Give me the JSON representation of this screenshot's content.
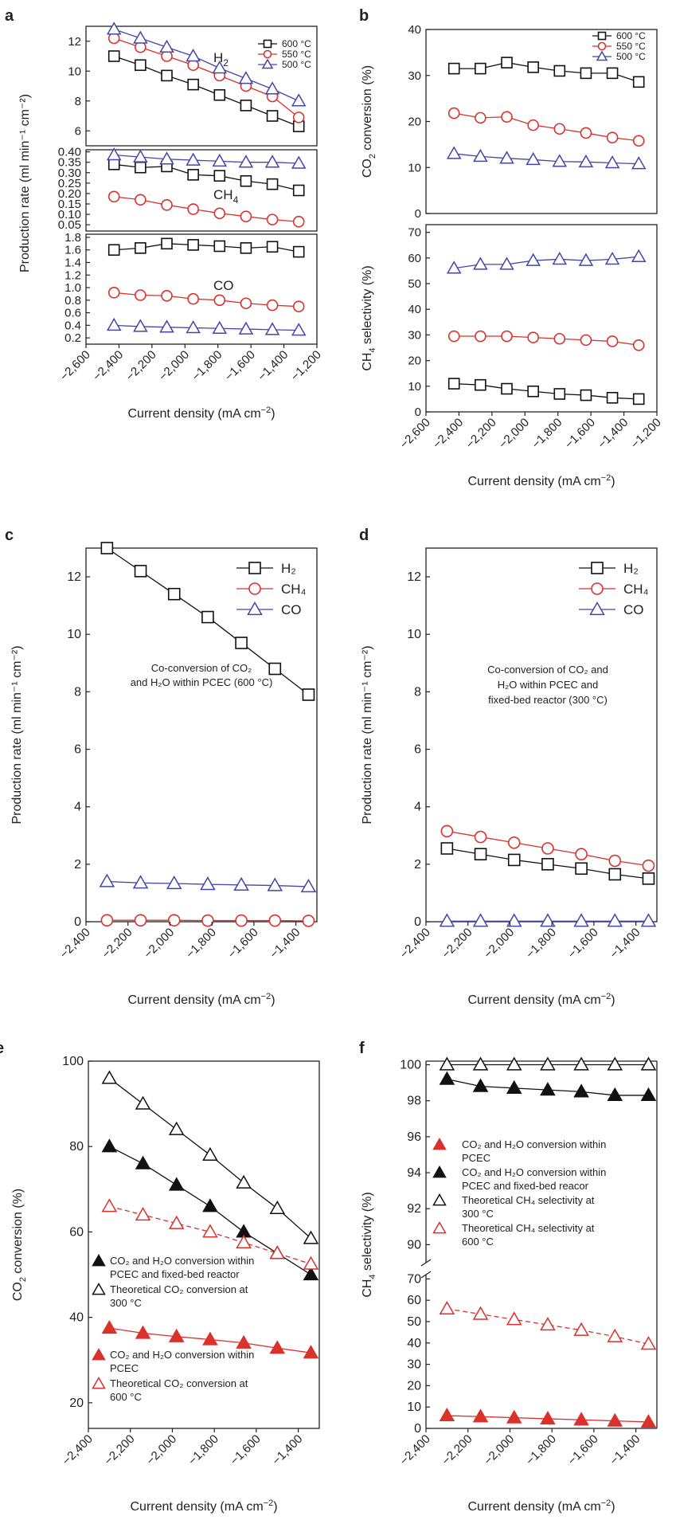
{
  "colors": {
    "black": "#111111",
    "red": "#d9312b",
    "blue": "#4446a8",
    "frame": "#222222"
  },
  "shared": {
    "xlabel_text": "Current density (mA cm",
    "xlabel_sup": "−2",
    "xlabel_close": ")"
  },
  "chart_data": [
    {
      "id": "a",
      "panel_label": "a",
      "type": "line",
      "xlim": [
        -2600,
        -1200
      ],
      "xticks": [
        -2600,
        -2400,
        -2200,
        -2000,
        -1800,
        -1600,
        -1400,
        -1200
      ],
      "xtick_labels": [
        "−2,600",
        "−2,400",
        "−2,200",
        "−2,000",
        "−1,800",
        "−1,600",
        "−1,400",
        "−1,200"
      ],
      "x": [
        -2430,
        -2270,
        -2110,
        -1950,
        -1790,
        -1630,
        -1470,
        -1310
      ],
      "ylabel": "Production rate (ml min⁻¹ cm⁻²)",
      "legend": [
        "600 °C",
        "550 °C",
        "500 °C"
      ],
      "subplots": [
        {
          "id": "H2",
          "ylim": [
            5,
            13
          ],
          "yticks": [
            6,
            8,
            10,
            12
          ],
          "ytick_labels": [
            "6",
            "8",
            "10",
            "12"
          ],
          "label_main": "H",
          "label_sub": "2",
          "series": [
            {
              "name": "600 °C",
              "marker": "square",
              "color": "#111111",
              "values": [
                11.0,
                10.4,
                9.7,
                9.1,
                8.4,
                7.7,
                7.0,
                6.3
              ]
            },
            {
              "name": "550 °C",
              "marker": "circle",
              "color": "#d9312b",
              "values": [
                12.2,
                11.6,
                11.0,
                10.4,
                9.7,
                9.0,
                8.3,
                6.9
              ]
            },
            {
              "name": "500 °C",
              "marker": "triangle",
              "color": "#4446a8",
              "values": [
                12.8,
                12.2,
                11.6,
                11.0,
                10.2,
                9.5,
                8.8,
                8.0
              ]
            }
          ]
        },
        {
          "id": "CH4",
          "ylim": [
            0.02,
            0.41
          ],
          "yticks": [
            0.05,
            0.1,
            0.15,
            0.2,
            0.25,
            0.3,
            0.35,
            0.4
          ],
          "ytick_labels": [
            "0.05",
            "0.10",
            "0.15",
            "0.20",
            "0.25",
            "0.30",
            "0.35",
            "0.40"
          ],
          "label_main": "CH",
          "label_sub": "4",
          "series": [
            {
              "name": "600 °C",
              "marker": "square",
              "color": "#111111",
              "values": [
                0.34,
                0.325,
                0.33,
                0.29,
                0.285,
                0.26,
                0.245,
                0.215
              ]
            },
            {
              "name": "550 °C",
              "marker": "circle",
              "color": "#d9312b",
              "values": [
                0.185,
                0.17,
                0.145,
                0.125,
                0.105,
                0.09,
                0.075,
                0.065
              ]
            },
            {
              "name": "500 °C",
              "marker": "triangle",
              "color": "#4446a8",
              "values": [
                0.385,
                0.375,
                0.365,
                0.36,
                0.355,
                0.35,
                0.35,
                0.345
              ]
            }
          ]
        },
        {
          "id": "CO",
          "ylim": [
            0.1,
            1.85
          ],
          "yticks": [
            0.2,
            0.4,
            0.6,
            0.8,
            1.0,
            1.2,
            1.4,
            1.6,
            1.8
          ],
          "ytick_labels": [
            "0.2",
            "0.4",
            "0.6",
            "0.8",
            "1.0",
            "1.2",
            "1.4",
            "1.6",
            "1.8"
          ],
          "label_main": "CO",
          "label_sub": "",
          "series": [
            {
              "name": "600 °C",
              "marker": "square",
              "color": "#111111",
              "values": [
                1.6,
                1.63,
                1.7,
                1.68,
                1.66,
                1.63,
                1.65,
                1.57
              ]
            },
            {
              "name": "550 °C",
              "marker": "circle",
              "color": "#d9312b",
              "values": [
                0.92,
                0.88,
                0.87,
                0.82,
                0.8,
                0.75,
                0.72,
                0.7
              ]
            },
            {
              "name": "500 °C",
              "marker": "triangle",
              "color": "#4446a8",
              "values": [
                0.4,
                0.38,
                0.37,
                0.36,
                0.35,
                0.34,
                0.33,
                0.32
              ]
            }
          ]
        }
      ]
    },
    {
      "id": "b",
      "panel_label": "b",
      "type": "line",
      "xlim": [
        -2600,
        -1200
      ],
      "xticks": [
        -2600,
        -2400,
        -2200,
        -2000,
        -1800,
        -1600,
        -1400,
        -1200
      ],
      "xtick_labels": [
        "−2,600",
        "−2,400",
        "−2,200",
        "−2,000",
        "−1,800",
        "−1,600",
        "−1,400",
        "−1,200"
      ],
      "x": [
        -2430,
        -2270,
        -2110,
        -1950,
        -1790,
        -1630,
        -1470,
        -1310
      ],
      "legend": [
        "600 °C",
        "550 °C",
        "500 °C"
      ],
      "subplots": [
        {
          "id": "CO2conv",
          "ylim": [
            0,
            40
          ],
          "yticks": [
            0,
            10,
            20,
            30,
            40
          ],
          "ytick_labels": [
            "0",
            "10",
            "20",
            "30",
            "40"
          ],
          "ylabel_main": "CO",
          "ylabel_sub": "2",
          "ylabel_rest": " conversion (%)",
          "series": [
            {
              "name": "600 °C",
              "marker": "square",
              "color": "#111111",
              "values": [
                31.5,
                31.5,
                32.8,
                31.8,
                31.0,
                30.5,
                30.5,
                28.6
              ]
            },
            {
              "name": "550 °C",
              "marker": "circle",
              "color": "#d9312b",
              "values": [
                21.8,
                20.8,
                21.0,
                19.2,
                18.4,
                17.5,
                16.5,
                15.8
              ]
            },
            {
              "name": "500 °C",
              "marker": "triangle",
              "color": "#4446a8",
              "values": [
                13.0,
                12.4,
                12.0,
                11.7,
                11.3,
                11.2,
                11.0,
                10.8
              ]
            }
          ]
        },
        {
          "id": "CH4sel",
          "ylim": [
            0,
            73
          ],
          "yticks": [
            0,
            10,
            20,
            30,
            40,
            50,
            60,
            70
          ],
          "ytick_labels": [
            "0",
            "10",
            "20",
            "30",
            "40",
            "50",
            "60",
            "70"
          ],
          "ylabel_main": "CH",
          "ylabel_sub": "4",
          "ylabel_rest": " selectivity (%)",
          "series": [
            {
              "name": "600 °C",
              "marker": "square",
              "color": "#111111",
              "values": [
                11.0,
                10.5,
                9.0,
                8.0,
                7.0,
                6.5,
                5.5,
                5.0
              ]
            },
            {
              "name": "550 °C",
              "marker": "circle",
              "color": "#d9312b",
              "values": [
                29.5,
                29.5,
                29.5,
                29.0,
                28.5,
                28.0,
                27.5,
                26.0
              ]
            },
            {
              "name": "500 °C",
              "marker": "triangle",
              "color": "#4446a8",
              "values": [
                56.0,
                57.5,
                57.5,
                59.0,
                59.5,
                59.0,
                59.5,
                60.5
              ]
            }
          ]
        }
      ]
    },
    {
      "id": "c",
      "panel_label": "c",
      "type": "line",
      "xlim": [
        -2400,
        -1300
      ],
      "xticks": [
        -2400,
        -2200,
        -2000,
        -1800,
        -1600,
        -1400
      ],
      "xtick_labels": [
        "−2,400",
        "−2,200",
        "−2,000",
        "−1,800",
        "−1,600",
        "−1,400"
      ],
      "x": [
        -2300,
        -2140,
        -1980,
        -1820,
        -1660,
        -1500,
        -1340
      ],
      "ylim": [
        0,
        13
      ],
      "yticks": [
        0,
        2,
        4,
        6,
        8,
        10,
        12
      ],
      "ytick_labels": [
        "0",
        "2",
        "4",
        "6",
        "8",
        "10",
        "12"
      ],
      "ylabel": "Production rate (ml min⁻¹ cm⁻²)",
      "annotation": [
        "Co-conversion of  CO₂",
        "and H₂O within PCEC (600 °C)"
      ],
      "legend": [
        "H₂",
        "CH₄",
        "CO"
      ],
      "series": [
        {
          "name": "H₂",
          "marker": "square",
          "color": "#111111",
          "values": [
            13.0,
            12.2,
            11.4,
            10.6,
            9.7,
            8.8,
            7.9
          ]
        },
        {
          "name": "CH₄",
          "marker": "circle",
          "color": "#d9312b",
          "values": [
            0.05,
            0.05,
            0.05,
            0.04,
            0.04,
            0.04,
            0.03
          ]
        },
        {
          "name": "CO",
          "marker": "triangle",
          "color": "#4446a8",
          "values": [
            1.4,
            1.35,
            1.33,
            1.3,
            1.28,
            1.26,
            1.22
          ]
        }
      ]
    },
    {
      "id": "d",
      "panel_label": "d",
      "type": "line",
      "xlim": [
        -2400,
        -1300
      ],
      "xticks": [
        -2400,
        -2200,
        -2000,
        -1800,
        -1600,
        -1400
      ],
      "xtick_labels": [
        "−2,400",
        "−2,200",
        "−2,000",
        "−1,800",
        "−1,600",
        "−1,400"
      ],
      "x": [
        -2300,
        -2140,
        -1980,
        -1820,
        -1660,
        -1500,
        -1340
      ],
      "ylim": [
        0,
        13
      ],
      "yticks": [
        0,
        2,
        4,
        6,
        8,
        10,
        12
      ],
      "ytick_labels": [
        "0",
        "2",
        "4",
        "6",
        "8",
        "10",
        "12"
      ],
      "ylabel": "Production rate (ml min⁻¹ cm⁻²)",
      "annotation": [
        "Co-conversion of  CO₂ and",
        "H₂O within PCEC and",
        "fixed-bed reactor (300 °C)"
      ],
      "legend": [
        "H₂",
        "CH₄",
        "CO"
      ],
      "series": [
        {
          "name": "H₂",
          "marker": "square",
          "color": "#111111",
          "values": [
            2.55,
            2.35,
            2.15,
            2.0,
            1.85,
            1.65,
            1.5
          ]
        },
        {
          "name": "CH₄",
          "marker": "circle",
          "color": "#d9312b",
          "values": [
            3.15,
            2.95,
            2.75,
            2.55,
            2.35,
            2.12,
            1.95
          ]
        },
        {
          "name": "CO",
          "marker": "triangle",
          "color": "#4446a8",
          "values": [
            0.02,
            0.02,
            0.02,
            0.02,
            0.02,
            0.02,
            0.02
          ]
        }
      ]
    },
    {
      "id": "e",
      "panel_label": "e",
      "type": "line",
      "xlim": [
        -2400,
        -1300
      ],
      "xticks": [
        -2400,
        -2200,
        -2000,
        -1800,
        -1600,
        -1400
      ],
      "xtick_labels": [
        "−2,400",
        "−2,200",
        "−2,000",
        "−1,800",
        "−1,600",
        "−1,400"
      ],
      "x": [
        -2300,
        -2140,
        -1980,
        -1820,
        -1660,
        -1500,
        -1340
      ],
      "ylim": [
        14,
        100
      ],
      "yticks": [
        20,
        40,
        60,
        80,
        100
      ],
      "ytick_labels": [
        "20",
        "40",
        "60",
        "80",
        "100"
      ],
      "ylabel_main": "CO",
      "ylabel_sub": "2",
      "ylabel_rest": " conversion (%)",
      "series": [
        {
          "name": "CO₂ and H₂O conversion within PCEC and fixed-bed reactor",
          "marker": "triangle-filled",
          "color": "#111111",
          "dashed": false,
          "values": [
            80,
            76,
            71,
            66,
            60,
            55,
            50
          ]
        },
        {
          "name": "Theoretical CO₂ conversion at 300 °C",
          "marker": "triangle-open",
          "color": "#111111",
          "dashed": false,
          "values": [
            96,
            90,
            84,
            78,
            71.5,
            65.5,
            58.5
          ]
        },
        {
          "name": "CO₂ and H₂O conversion within PCEC",
          "marker": "triangle-filled",
          "color": "#d9312b",
          "dashed": false,
          "values": [
            37.5,
            36.3,
            35.5,
            34.8,
            34.0,
            32.8,
            31.7
          ]
        },
        {
          "name": "Theoretical CO₂ conversion at 600 °C",
          "marker": "triangle-open",
          "color": "#d9312b",
          "dashed": true,
          "values": [
            66,
            64,
            62,
            60,
            57.5,
            55,
            52.5
          ]
        }
      ],
      "legend_groups": [
        {
          "items": [
            {
              "lines": [
                "CO₂ and H₂O conversion within",
                "PCEC and fixed-bed reactor"
              ],
              "marker": "triangle-filled",
              "color": "#111111"
            },
            {
              "lines": [
                "Theoretical CO₂ conversion at",
                "300 °C"
              ],
              "marker": "triangle-open",
              "color": "#111111"
            }
          ]
        },
        {
          "items": [
            {
              "lines": [
                "CO₂ and H₂O conversion within",
                "PCEC"
              ],
              "marker": "triangle-filled",
              "color": "#d9312b"
            },
            {
              "lines": [
                "Theoretical CO₂ conversion at",
                "600 °C"
              ],
              "marker": "triangle-open",
              "color": "#d9312b"
            }
          ]
        }
      ]
    },
    {
      "id": "f",
      "panel_label": "f",
      "type": "line",
      "broken_axis": true,
      "xlim": [
        -2400,
        -1300
      ],
      "xticks": [
        -2400,
        -2200,
        -2000,
        -1800,
        -1600,
        -1400
      ],
      "xtick_labels": [
        "−2,400",
        "−2,200",
        "−2,000",
        "−1,800",
        "−1,600",
        "−1,400"
      ],
      "x": [
        -2300,
        -2140,
        -1980,
        -1820,
        -1660,
        -1500,
        -1340
      ],
      "upper_ylim": [
        89,
        100.2
      ],
      "upper_yticks": [
        90,
        92,
        94,
        96,
        98,
        100
      ],
      "upper_ytick_labels": [
        "90",
        "92",
        "94",
        "96",
        "98",
        "100"
      ],
      "lower_ylim": [
        0,
        72
      ],
      "lower_yticks": [
        0,
        10,
        20,
        30,
        40,
        50,
        60,
        70
      ],
      "lower_ytick_labels": [
        "0",
        "10",
        "20",
        "30",
        "40",
        "50",
        "60",
        "70"
      ],
      "ylabel_main": "CH",
      "ylabel_sub": "4",
      "ylabel_rest": " selectivity (%)",
      "series": [
        {
          "name": "CO₂ and H₂O conversion within PCEC",
          "marker": "triangle-filled",
          "color": "#d9312b",
          "dashed": false,
          "segment": "lower",
          "values": [
            6.0,
            5.5,
            5.0,
            4.5,
            4.0,
            3.5,
            3.0
          ]
        },
        {
          "name": "CO₂ and H₂O conversion within PCEC and fixed-bed reacor",
          "marker": "triangle-filled",
          "color": "#111111",
          "dashed": false,
          "segment": "upper",
          "values": [
            99.2,
            98.8,
            98.7,
            98.6,
            98.5,
            98.3,
            98.3
          ]
        },
        {
          "name": "Theoretical CH₄ selectivity at 300 °C",
          "marker": "triangle-open",
          "color": "#111111",
          "dashed": false,
          "segment": "upper",
          "values": [
            100,
            100,
            100,
            100,
            100,
            100,
            100
          ]
        },
        {
          "name": "Theoretical CH₄ selectivity at 600 °C",
          "marker": "triangle-open",
          "color": "#d9312b",
          "dashed": true,
          "segment": "lower",
          "values": [
            56,
            53.5,
            51,
            48.5,
            46,
            43,
            39.5
          ]
        }
      ],
      "legend_items": [
        {
          "lines": [
            "CO₂ and H₂O conversion within",
            "PCEC"
          ],
          "marker": "triangle-filled",
          "color": "#d9312b"
        },
        {
          "lines": [
            "CO₂ and H₂O conversion within",
            "PCEC and fixed-bed reacor"
          ],
          "marker": "triangle-filled",
          "color": "#111111"
        },
        {
          "lines": [
            "Theoretical CH₄ selectivity at",
            "300 °C"
          ],
          "marker": "triangle-open",
          "color": "#111111"
        },
        {
          "lines": [
            "Theoretical CH₄ selectivity at",
            "600 °C"
          ],
          "marker": "triangle-open",
          "color": "#d9312b"
        }
      ]
    }
  ]
}
